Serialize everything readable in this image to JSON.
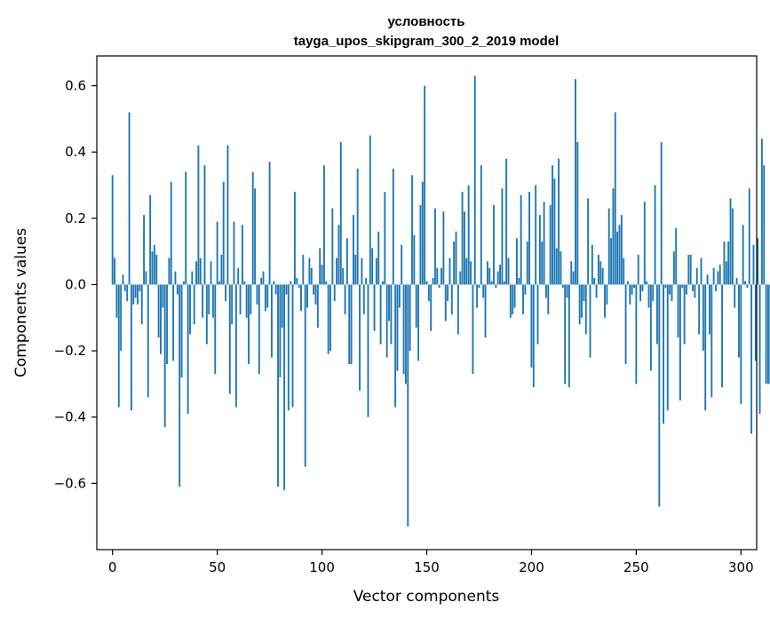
{
  "chart_data": {
    "type": "bar",
    "title": "условность",
    "subtitle": "tayga_upos_skipgram_300_2_2019 model",
    "xlabel": "Vector components",
    "ylabel": "Components values",
    "xlim": [
      -7.5,
      307.5
    ],
    "ylim": [
      -0.8,
      0.69
    ],
    "xticks": [
      0,
      50,
      100,
      150,
      200,
      250,
      300
    ],
    "xtick_labels": [
      "0",
      "50",
      "100",
      "150",
      "200",
      "250",
      "300"
    ],
    "yticks": [
      -0.6,
      -0.4,
      -0.2,
      0.0,
      0.2,
      0.4,
      0.6
    ],
    "ytick_labels": [
      "−0.6",
      "−0.4",
      "−0.2",
      "0.0",
      "0.2",
      "0.4",
      "0.6"
    ],
    "grid": false,
    "bar_color": "#1f77b4",
    "values": [
      0.33,
      0.08,
      -0.1,
      -0.37,
      -0.2,
      0.03,
      -0.02,
      -0.05,
      0.52,
      -0.38,
      -0.06,
      -0.04,
      -0.06,
      -0.02,
      -0.12,
      0.21,
      0.04,
      -0.34,
      0.27,
      0.1,
      0.12,
      0.09,
      -0.16,
      -0.21,
      -0.07,
      -0.43,
      -0.24,
      0.08,
      0.31,
      -0.23,
      0.04,
      -0.03,
      -0.61,
      -0.28,
      0.01,
      0.34,
      -0.39,
      -0.15,
      0.04,
      -0.12,
      0.07,
      0.42,
      0.08,
      -0.1,
      0.36,
      -0.18,
      -0.09,
      0.07,
      -0.1,
      -0.27,
      0.19,
      0.01,
      0.09,
      0.31,
      -0.05,
      0.42,
      -0.33,
      -0.12,
      0.19,
      -0.37,
      0.05,
      -0.09,
      0.18,
      0.01,
      -0.1,
      -0.24,
      -0.09,
      0.34,
      0.29,
      -0.06,
      -0.27,
      0.02,
      0.04,
      -0.08,
      -0.07,
      0.37,
      -0.22,
      0.01,
      -0.03,
      -0.61,
      -0.28,
      -0.13,
      -0.62,
      -0.03,
      -0.38,
      0.01,
      -0.37,
      0.28,
      0.02,
      -0.01,
      -0.08,
      0.09,
      -0.55,
      -0.07,
      0.08,
      0.05,
      -0.03,
      -0.06,
      -0.13,
      0.11,
      0.06,
      0.36,
      0.01,
      -0.21,
      -0.2,
      0.23,
      -0.05,
      0.08,
      0.18,
      0.43,
      0.05,
      -0.09,
      0.14,
      -0.24,
      -0.24,
      0.21,
      0.09,
      0.35,
      -0.32,
      0.08,
      -0.09,
      0.02,
      -0.4,
      0.45,
      0.11,
      -0.14,
      0.08,
      0.16,
      -0.18,
      0.01,
      0.28,
      -0.22,
      -0.11,
      -0.18,
      0.35,
      -0.37,
      -0.26,
      -0.07,
      0.12,
      -0.27,
      -0.3,
      -0.73,
      -0.2,
      0.33,
      0.15,
      -0.13,
      -0.23,
      0.24,
      0.31,
      0.6,
      0.01,
      -0.05,
      -0.14,
      0.02,
      0.23,
      0.05,
      -0.01,
      0.05,
      0.22,
      -0.11,
      -0.05,
      0.08,
      -0.09,
      0.13,
      0.16,
      -0.15,
      0.04,
      0.28,
      0.22,
      0.08,
      0.3,
      0.07,
      -0.27,
      0.63,
      -0.07,
      -0.01,
      0.36,
      -0.04,
      -0.16,
      0.07,
      0.05,
      0.01,
      0.24,
      -0.01,
      0.04,
      0.06,
      0.29,
      0.01,
      0.38,
      0.08,
      -0.1,
      -0.09,
      -0.07,
      0.14,
      0.02,
      0.27,
      -0.09,
      -0.03,
      0.13,
      0.28,
      -0.25,
      -0.31,
      0.3,
      -0.18,
      0.21,
      0.13,
      0.25,
      -0.04,
      -0.09,
      0.24,
      0.36,
      0.32,
      0.11,
      0.38,
      0.1,
      -0.01,
      -0.3,
      -0.04,
      -0.31,
      0.07,
      0.04,
      0.62,
      0.43,
      -0.12,
      -0.1,
      -0.05,
      -0.15,
      0.26,
      -0.22,
      0.12,
      0.02,
      -0.04,
      0.09,
      0.07,
      0.05,
      -0.1,
      -0.06,
      0.23,
      0.14,
      0.29,
      0.52,
      0.16,
      0.18,
      0.21,
      0.08,
      -0.24,
      0.01,
      -0.06,
      -0.03,
      -0.01,
      -0.3,
      0.09,
      -0.05,
      -0.02,
      0.25,
      0.01,
      -0.07,
      -0.26,
      -0.05,
      0.3,
      -0.18,
      -0.67,
      0.43,
      -0.42,
      -0.01,
      -0.38,
      -0.03,
      -0.05,
      0.1,
      0.17,
      -0.16,
      -0.35,
      -0.01,
      -0.18,
      -0.03,
      0.09,
      0.09,
      -0.02,
      -0.04,
      0.05,
      -0.15,
      0.08,
      -0.2,
      -0.38,
      0.03,
      -0.15,
      -0.34,
      0.05,
      -0.02,
      0.04,
      0.06,
      -0.31,
      0.13,
      0.07,
      0.13,
      0.26,
      0.23,
      -0.07,
      0.02,
      -0.22,
      -0.36,
      0.18,
      0.01,
      -0.01,
      0.29,
      -0.45,
      0.12,
      -0.23,
      0.14,
      -0.39,
      0.44,
      0.36,
      -0.3,
      -0.3,
      -0.3,
      0.15,
      0.14,
      -0.33
    ]
  }
}
